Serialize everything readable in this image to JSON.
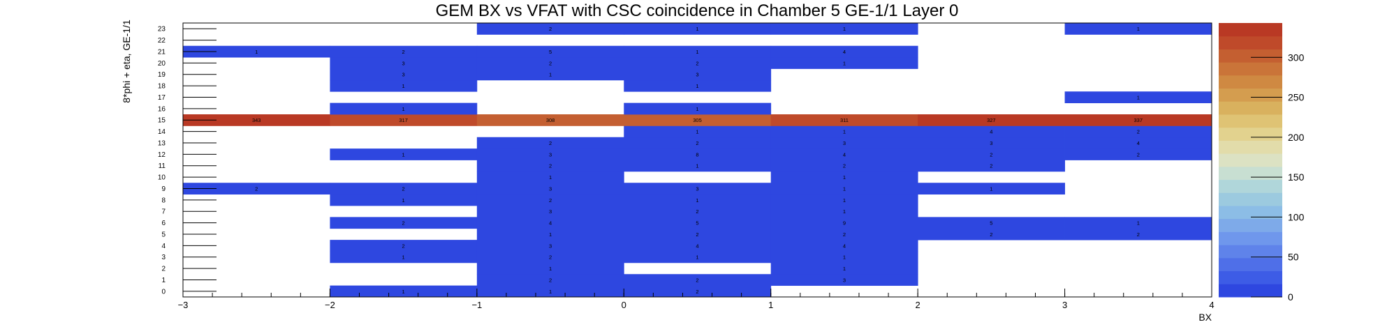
{
  "chart_data": {
    "type": "heatmap",
    "title": "GEM BX vs VFAT with CSC coincidence in Chamber 5 GE-1/1 Layer 0",
    "xlabel": "BX",
    "ylabel": "8*phi + eta, GE-1/1",
    "xlim": [
      -3,
      4
    ],
    "x_ticks": [
      "−3",
      "−2",
      "−1",
      "0",
      "1",
      "2",
      "3",
      "4"
    ],
    "y_categories": [
      "0",
      "1",
      "2",
      "3",
      "4",
      "5",
      "6",
      "7",
      "8",
      "9",
      "10",
      "11",
      "12",
      "13",
      "14",
      "15",
      "16",
      "17",
      "18",
      "19",
      "20",
      "21",
      "22",
      "23"
    ],
    "x_bins": [
      -2.5,
      -1.5,
      -0.5,
      0.5,
      1.5,
      2.5,
      3.5
    ],
    "colorbar": {
      "min": 0,
      "max": 343,
      "ticks": [
        "0",
        "50",
        "100",
        "150",
        "200",
        "250",
        "300"
      ]
    },
    "palette": [
      "#2e47e0",
      "#3d5ce6",
      "#4f6fe8",
      "#5f83ea",
      "#6f97ec",
      "#7eaae9",
      "#8cbde6",
      "#9ccadf",
      "#b0d6da",
      "#c8dfd2",
      "#dce2c3",
      "#e2dcaa",
      "#e2d28e",
      "#dfc374",
      "#d9b15e",
      "#d49d4f",
      "#cf8942",
      "#ca7439",
      "#c45f31",
      "#bf4a2a",
      "#b93924"
    ],
    "cells": [
      {
        "x": -0.5,
        "y": 0,
        "v": 1
      },
      {
        "x": -1.5,
        "y": 0,
        "v": 1
      },
      {
        "x": 0.5,
        "y": 0,
        "v": 2
      },
      {
        "x": -0.5,
        "y": 1,
        "v": 2
      },
      {
        "x": 0.5,
        "y": 1,
        "v": 2
      },
      {
        "x": 1.5,
        "y": 1,
        "v": 3
      },
      {
        "x": -0.5,
        "y": 2,
        "v": 1
      },
      {
        "x": 1.5,
        "y": 2,
        "v": 1
      },
      {
        "x": -1.5,
        "y": 3,
        "v": 1
      },
      {
        "x": -0.5,
        "y": 3,
        "v": 2
      },
      {
        "x": 0.5,
        "y": 3,
        "v": 1
      },
      {
        "x": 1.5,
        "y": 3,
        "v": 1
      },
      {
        "x": -1.5,
        "y": 4,
        "v": 2
      },
      {
        "x": -0.5,
        "y": 4,
        "v": 3
      },
      {
        "x": 0.5,
        "y": 4,
        "v": 4
      },
      {
        "x": 1.5,
        "y": 4,
        "v": 4
      },
      {
        "x": -0.5,
        "y": 5,
        "v": 1
      },
      {
        "x": 0.5,
        "y": 5,
        "v": 2
      },
      {
        "x": 1.5,
        "y": 5,
        "v": 2
      },
      {
        "x": 2.5,
        "y": 5,
        "v": 2
      },
      {
        "x": 3.5,
        "y": 5,
        "v": 2
      },
      {
        "x": -1.5,
        "y": 6,
        "v": 2
      },
      {
        "x": -0.5,
        "y": 6,
        "v": 4
      },
      {
        "x": 0.5,
        "y": 6,
        "v": 5
      },
      {
        "x": 1.5,
        "y": 6,
        "v": 9
      },
      {
        "x": 2.5,
        "y": 6,
        "v": 5
      },
      {
        "x": 3.5,
        "y": 6,
        "v": 1
      },
      {
        "x": -0.5,
        "y": 7,
        "v": 3
      },
      {
        "x": 0.5,
        "y": 7,
        "v": 2
      },
      {
        "x": 1.5,
        "y": 7,
        "v": 1
      },
      {
        "x": -1.5,
        "y": 8,
        "v": 1
      },
      {
        "x": -0.5,
        "y": 8,
        "v": 2
      },
      {
        "x": 0.5,
        "y": 8,
        "v": 1
      },
      {
        "x": 1.5,
        "y": 8,
        "v": 1
      },
      {
        "x": -2.5,
        "y": 9,
        "v": 2
      },
      {
        "x": -1.5,
        "y": 9,
        "v": 2
      },
      {
        "x": -0.5,
        "y": 9,
        "v": 3
      },
      {
        "x": 0.5,
        "y": 9,
        "v": 3
      },
      {
        "x": 1.5,
        "y": 9,
        "v": 1
      },
      {
        "x": 2.5,
        "y": 9,
        "v": 1
      },
      {
        "x": -0.5,
        "y": 10,
        "v": 1
      },
      {
        "x": 1.5,
        "y": 10,
        "v": 1
      },
      {
        "x": -0.5,
        "y": 11,
        "v": 2
      },
      {
        "x": 0.5,
        "y": 11,
        "v": 1
      },
      {
        "x": 1.5,
        "y": 11,
        "v": 2
      },
      {
        "x": 2.5,
        "y": 11,
        "v": 2
      },
      {
        "x": -1.5,
        "y": 12,
        "v": 1
      },
      {
        "x": -0.5,
        "y": 12,
        "v": 3
      },
      {
        "x": 0.5,
        "y": 12,
        "v": 8
      },
      {
        "x": 1.5,
        "y": 12,
        "v": 4
      },
      {
        "x": 2.5,
        "y": 12,
        "v": 2
      },
      {
        "x": 3.5,
        "y": 12,
        "v": 2
      },
      {
        "x": -0.5,
        "y": 13,
        "v": 2
      },
      {
        "x": 0.5,
        "y": 13,
        "v": 2
      },
      {
        "x": 1.5,
        "y": 13,
        "v": 3
      },
      {
        "x": 2.5,
        "y": 13,
        "v": 3
      },
      {
        "x": 3.5,
        "y": 13,
        "v": 4
      },
      {
        "x": 0.5,
        "y": 14,
        "v": 1
      },
      {
        "x": 1.5,
        "y": 14,
        "v": 1
      },
      {
        "x": 2.5,
        "y": 14,
        "v": 4
      },
      {
        "x": 3.5,
        "y": 14,
        "v": 2
      },
      {
        "x": -2.5,
        "y": 15,
        "v": 343
      },
      {
        "x": -1.5,
        "y": 15,
        "v": 317
      },
      {
        "x": -0.5,
        "y": 15,
        "v": 308
      },
      {
        "x": 0.5,
        "y": 15,
        "v": 305
      },
      {
        "x": 1.5,
        "y": 15,
        "v": 311
      },
      {
        "x": 2.5,
        "y": 15,
        "v": 327
      },
      {
        "x": 3.5,
        "y": 15,
        "v": 337
      },
      {
        "x": -1.5,
        "y": 16,
        "v": 1
      },
      {
        "x": 0.5,
        "y": 16,
        "v": 1
      },
      {
        "x": 3.5,
        "y": 17,
        "v": 1
      },
      {
        "x": -1.5,
        "y": 18,
        "v": 1
      },
      {
        "x": 0.5,
        "y": 18,
        "v": 1
      },
      {
        "x": -1.5,
        "y": 19,
        "v": 3
      },
      {
        "x": -0.5,
        "y": 19,
        "v": 1
      },
      {
        "x": 0.5,
        "y": 19,
        "v": 3
      },
      {
        "x": -1.5,
        "y": 20,
        "v": 3
      },
      {
        "x": -0.5,
        "y": 20,
        "v": 2
      },
      {
        "x": 0.5,
        "y": 20,
        "v": 2
      },
      {
        "x": 1.5,
        "y": 20,
        "v": 1
      },
      {
        "x": -2.5,
        "y": 21,
        "v": 1
      },
      {
        "x": -1.5,
        "y": 21,
        "v": 2
      },
      {
        "x": -0.5,
        "y": 21,
        "v": 5
      },
      {
        "x": 0.5,
        "y": 21,
        "v": 1
      },
      {
        "x": 1.5,
        "y": 21,
        "v": 4
      },
      {
        "x": -0.5,
        "y": 23,
        "v": 2
      },
      {
        "x": 0.5,
        "y": 23,
        "v": 1
      },
      {
        "x": 1.5,
        "y": 23,
        "v": 1
      },
      {
        "x": 3.5,
        "y": 23,
        "v": 1
      }
    ]
  }
}
